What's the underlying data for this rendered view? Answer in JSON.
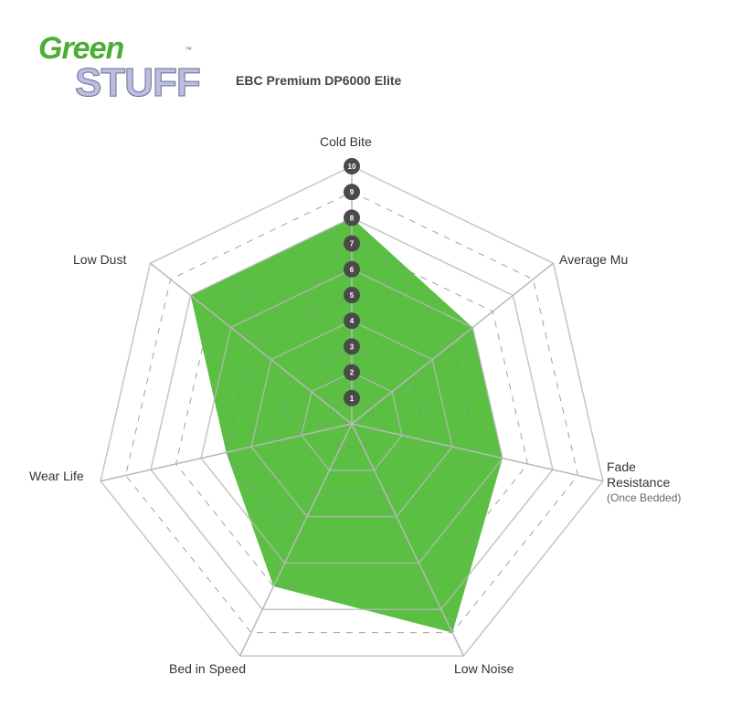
{
  "logo": {
    "line1": "Green",
    "line2": "STUFF",
    "tm": "™"
  },
  "chart_data": {
    "type": "radar",
    "title": "EBC Premium DP6000 Elite",
    "axes": [
      "Cold Bite",
      "Average Mu",
      "Fade Resistance",
      "Low Noise",
      "Bed in Speed",
      "Wear Life",
      "Low Dust"
    ],
    "axis_sublabels": {
      "Fade Resistance": "(Once Bedded)"
    },
    "values": [
      8,
      6,
      6,
      9,
      7,
      5,
      8
    ],
    "range": [
      0,
      10
    ],
    "scale_ticks": [
      1,
      2,
      3,
      4,
      5,
      6,
      7,
      8,
      9,
      10
    ],
    "fill_color": "#5bbf44",
    "grid_color": "#b8b8b8",
    "grid": true
  }
}
